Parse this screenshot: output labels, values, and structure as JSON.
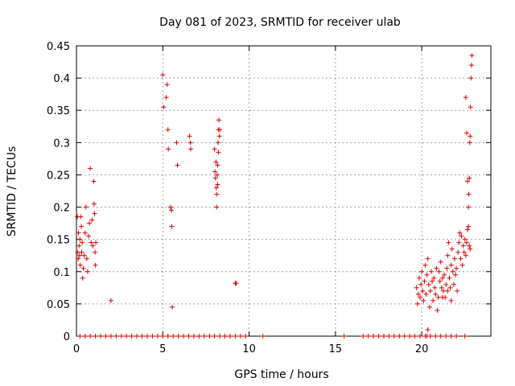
{
  "chart_data": {
    "type": "scatter",
    "title": "Day 081 of 2023, SRMTID for receiver ulab",
    "xlabel": "GPS time / hours",
    "ylabel": "SRMTID / TECUs",
    "xlim": [
      0,
      24
    ],
    "ylim": [
      0,
      0.45
    ],
    "x_ticks": [
      0,
      5,
      10,
      15,
      20
    ],
    "x_tick_labels": [
      "0",
      "5",
      "10",
      "15",
      "20"
    ],
    "y_ticks": [
      0,
      0.05,
      0.1,
      0.15,
      0.2,
      0.25,
      0.3,
      0.35,
      0.4,
      0.45
    ],
    "y_tick_labels": [
      "0",
      "0.05",
      "0.1",
      "0.15",
      "0.2",
      "0.25",
      "0.3",
      "0.35",
      "0.4",
      "0.45"
    ],
    "grid": true,
    "marker": "+",
    "series_color": "#dd0000",
    "series": [
      {
        "name": "SRMTID",
        "points": [
          [
            0.05,
            0.185
          ],
          [
            0.08,
            0.13
          ],
          [
            0.1,
            0.12
          ],
          [
            0.12,
            0.16
          ],
          [
            0.15,
            0.14
          ],
          [
            0.18,
            0.125
          ],
          [
            0.2,
            0.15
          ],
          [
            0.22,
            0.11
          ],
          [
            0.25,
            0.185
          ],
          [
            0.28,
            0.17
          ],
          [
            0.3,
            0.13
          ],
          [
            0.33,
            0.145
          ],
          [
            0.36,
            0.09
          ],
          [
            0.4,
            0.105
          ],
          [
            0.45,
            0.125
          ],
          [
            0.5,
            0.16
          ],
          [
            0.55,
            0.2
          ],
          [
            0.6,
            0.12
          ],
          [
            0.65,
            0.1
          ],
          [
            0.7,
            0.155
          ],
          [
            0.75,
            0.175
          ],
          [
            0.8,
            0.26
          ],
          [
            0.85,
            0.145
          ],
          [
            0.9,
            0.18
          ],
          [
            0.95,
            0.14
          ],
          [
            1.0,
            0.24
          ],
          [
            1.02,
            0.205
          ],
          [
            1.05,
            0.19
          ],
          [
            1.08,
            0.13
          ],
          [
            1.1,
            0.11
          ],
          [
            1.12,
            0.145
          ],
          [
            2.0,
            0.055
          ],
          [
            5.0,
            0.405
          ],
          [
            5.05,
            0.355
          ],
          [
            5.2,
            0.37
          ],
          [
            5.25,
            0.39
          ],
          [
            5.3,
            0.32
          ],
          [
            5.32,
            0.29
          ],
          [
            5.45,
            0.2
          ],
          [
            5.5,
            0.195
          ],
          [
            5.52,
            0.17
          ],
          [
            5.55,
            0.045
          ],
          [
            5.8,
            0.3
          ],
          [
            5.85,
            0.265
          ],
          [
            6.55,
            0.31
          ],
          [
            6.6,
            0.3
          ],
          [
            6.62,
            0.29
          ],
          [
            8.0,
            0.29
          ],
          [
            8.02,
            0.255
          ],
          [
            8.05,
            0.245
          ],
          [
            8.08,
            0.27
          ],
          [
            8.1,
            0.23
          ],
          [
            8.12,
            0.22
          ],
          [
            8.15,
            0.25
          ],
          [
            8.18,
            0.235
          ],
          [
            8.2,
            0.3
          ],
          [
            8.22,
            0.32
          ],
          [
            8.25,
            0.335
          ],
          [
            8.28,
            0.31
          ],
          [
            8.3,
            0.32
          ],
          [
            8.12,
            0.2
          ],
          [
            8.18,
            0.265
          ],
          [
            8.22,
            0.285
          ],
          [
            9.2,
            0.082
          ],
          [
            9.25,
            0.082
          ],
          [
            19.7,
            0.075
          ],
          [
            19.75,
            0.05
          ],
          [
            19.8,
            0.065
          ],
          [
            19.85,
            0.09
          ],
          [
            19.9,
            0.06
          ],
          [
            19.95,
            0.08
          ],
          [
            20.0,
            0.1
          ],
          [
            20.05,
            0.07
          ],
          [
            20.1,
            0.055
          ],
          [
            20.15,
            0.085
          ],
          [
            20.2,
            0.11
          ],
          [
            20.25,
            0.065
          ],
          [
            20.3,
            0.095
          ],
          [
            20.35,
            0.12
          ],
          [
            20.4,
            0.08
          ],
          [
            20.45,
            0.045
          ],
          [
            20.5,
            0.07
          ],
          [
            20.55,
            0.1
          ],
          [
            20.6,
            0.085
          ],
          [
            20.65,
            0.055
          ],
          [
            20.7,
            0.09
          ],
          [
            20.75,
            0.075
          ],
          [
            20.8,
            0.065
          ],
          [
            20.85,
            0.105
          ],
          [
            20.9,
            0.04
          ],
          [
            20.95,
            0.06
          ],
          [
            21.0,
            0.1
          ],
          [
            21.05,
            0.085
          ],
          [
            21.1,
            0.115
          ],
          [
            21.15,
            0.075
          ],
          [
            21.2,
            0.09
          ],
          [
            21.25,
            0.07
          ],
          [
            21.3,
            0.095
          ],
          [
            21.35,
            0.06
          ],
          [
            21.4,
            0.08
          ],
          [
            21.45,
            0.105
          ],
          [
            21.5,
            0.125
          ],
          [
            21.55,
            0.145
          ],
          [
            21.6,
            0.09
          ],
          [
            21.65,
            0.075
          ],
          [
            21.7,
            0.11
          ],
          [
            21.75,
            0.135
          ],
          [
            21.8,
            0.1
          ],
          [
            21.85,
            0.08
          ],
          [
            21.9,
            0.12
          ],
          [
            21.95,
            0.095
          ],
          [
            22.0,
            0.105
          ],
          [
            22.05,
            0.07
          ],
          [
            22.1,
            0.13
          ],
          [
            22.15,
            0.145
          ],
          [
            22.2,
            0.16
          ],
          [
            22.25,
            0.12
          ],
          [
            22.3,
            0.155
          ],
          [
            22.35,
            0.11
          ],
          [
            22.4,
            0.14
          ],
          [
            22.45,
            0.13
          ],
          [
            22.5,
            0.15
          ],
          [
            22.55,
            0.125
          ],
          [
            22.6,
            0.145
          ],
          [
            22.65,
            0.165
          ],
          [
            22.7,
            0.2
          ],
          [
            22.72,
            0.22
          ],
          [
            22.75,
            0.245
          ],
          [
            22.78,
            0.3
          ],
          [
            22.8,
            0.31
          ],
          [
            22.82,
            0.355
          ],
          [
            22.85,
            0.4
          ],
          [
            22.88,
            0.42
          ],
          [
            22.9,
            0.435
          ],
          [
            22.55,
            0.37
          ],
          [
            22.6,
            0.315
          ],
          [
            22.65,
            0.24
          ],
          [
            22.7,
            0.17
          ],
          [
            22.75,
            0.14
          ],
          [
            22.8,
            0.135
          ],
          [
            20.3,
            0.0
          ],
          [
            20.35,
            0.01
          ],
          [
            21.2,
            0.06
          ],
          [
            21.5,
            0.07
          ],
          [
            21.7,
            0.055
          ]
        ]
      }
    ],
    "zero_line_points_x": [
      0.2,
      0.5,
      0.8,
      1.1,
      1.4,
      1.7,
      2.0,
      2.3,
      2.6,
      2.9,
      3.2,
      3.5,
      3.8,
      4.1,
      4.4,
      4.7,
      5.0,
      5.3,
      5.6,
      5.9,
      6.2,
      6.5,
      6.8,
      7.1,
      7.4,
      7.7,
      8.0,
      8.3,
      8.6,
      8.9,
      9.2,
      9.5,
      9.8,
      10.8,
      15.5,
      16.6,
      16.9,
      17.2,
      17.5,
      17.8,
      18.1,
      18.4,
      18.7,
      19.0,
      19.3,
      19.6,
      19.9,
      20.2,
      20.5,
      20.8,
      21.1,
      21.4,
      21.7,
      22.0,
      22.5
    ]
  }
}
